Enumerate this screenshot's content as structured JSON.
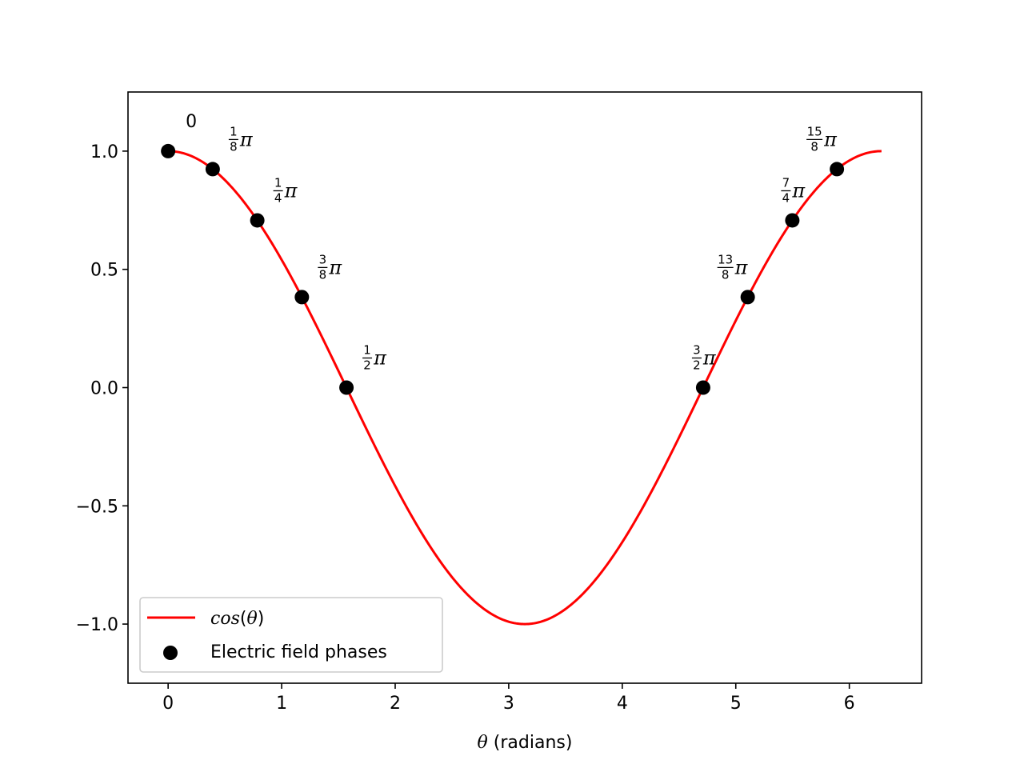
{
  "chart_data": {
    "type": "line",
    "title": "",
    "xlabel": {
      "symbol": "θ",
      "rest": " (radians)"
    },
    "ylabel": "",
    "xlim": [
      -0.3534,
      6.6366
    ],
    "ylim": [
      -1.25,
      1.25
    ],
    "grid": false,
    "legend_position": "lower-left",
    "xticks": [
      0,
      1,
      2,
      3,
      4,
      5,
      6
    ],
    "xtick_labels": [
      "0",
      "1",
      "2",
      "3",
      "4",
      "5",
      "6"
    ],
    "yticks": [
      1.0,
      0.5,
      0.0,
      -0.5,
      -1.0
    ],
    "ytick_labels": [
      "1.0",
      "0.5",
      "0.0",
      "−0.5",
      "−1.0"
    ],
    "series": [
      {
        "name": "cos(θ)",
        "legend_fn": "cos",
        "legend_var": "θ",
        "kind": "line",
        "function": "cos",
        "x_range": [
          0,
          6.2832
        ],
        "color": "#ff0000"
      },
      {
        "name": "Electric field phases",
        "kind": "scatter",
        "color": "#000000",
        "points": [
          {
            "x": 0.0,
            "y": 1.0,
            "label": {
              "type": "text",
              "text": "0"
            }
          },
          {
            "x": 0.3927,
            "y": 0.9239,
            "label": {
              "type": "frac",
              "num": "1",
              "den": "8",
              "sym": "π"
            }
          },
          {
            "x": 0.7854,
            "y": 0.7071,
            "label": {
              "type": "frac",
              "num": "1",
              "den": "4",
              "sym": "π"
            }
          },
          {
            "x": 1.1781,
            "y": 0.3827,
            "label": {
              "type": "frac",
              "num": "3",
              "den": "8",
              "sym": "π"
            }
          },
          {
            "x": 1.5708,
            "y": 0.0,
            "label": {
              "type": "frac",
              "num": "1",
              "den": "2",
              "sym": "π"
            }
          },
          {
            "x": 4.7124,
            "y": 0.0,
            "label": {
              "type": "frac",
              "num": "3",
              "den": "2",
              "sym": "π"
            }
          },
          {
            "x": 5.1051,
            "y": 0.3827,
            "label": {
              "type": "frac",
              "num": "13",
              "den": "8",
              "sym": "π"
            }
          },
          {
            "x": 5.4978,
            "y": 0.7071,
            "label": {
              "type": "frac",
              "num": "7",
              "den": "4",
              "sym": "π"
            }
          },
          {
            "x": 5.8905,
            "y": 0.9239,
            "label": {
              "type": "frac",
              "num": "15",
              "den": "8",
              "sym": "π"
            }
          }
        ]
      }
    ]
  }
}
